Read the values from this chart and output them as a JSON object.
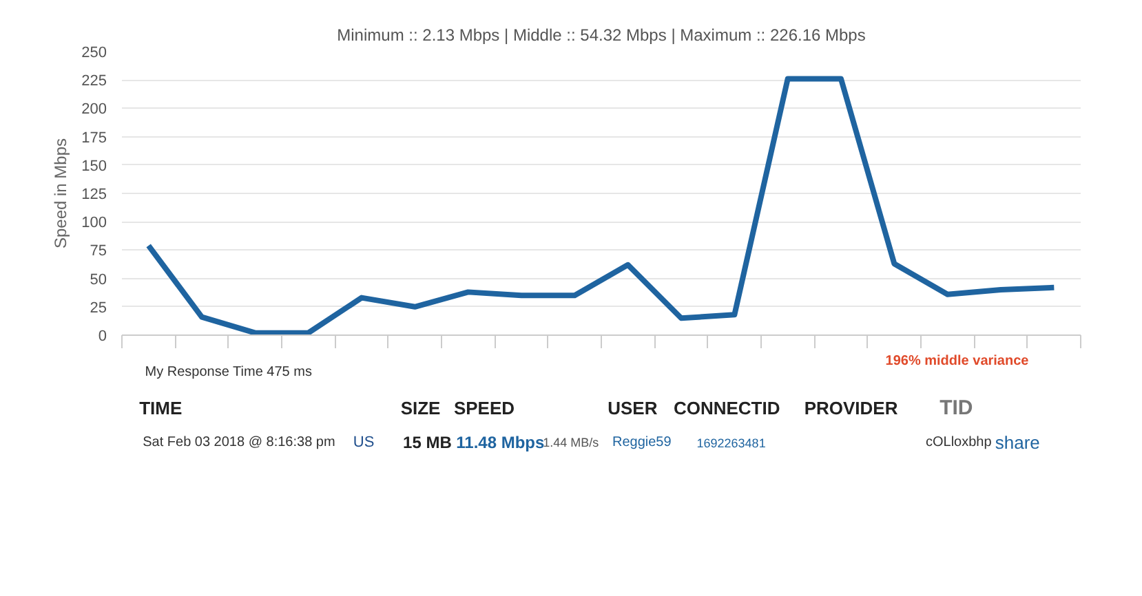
{
  "chart_data": {
    "type": "line",
    "title": "Minimum :: 2.13 Mbps | Middle :: 54.32 Mbps | Maximum :: 226.16 Mbps",
    "ylabel": "Speed in Mbps",
    "categories": [
      null,
      null,
      null,
      null,
      null,
      null,
      null,
      null,
      null,
      null,
      null,
      null,
      null,
      null,
      null,
      null,
      null,
      null
    ],
    "series": [
      {
        "color": "#1f64a0",
        "values": [
          79,
          16,
          2,
          2,
          33,
          25,
          38,
          35,
          35,
          62,
          15,
          18,
          226,
          226,
          63,
          36,
          40,
          42
        ]
      }
    ],
    "ylim": [
      0,
      250
    ],
    "yticks": [
      0,
      25,
      50,
      75,
      100,
      125,
      150,
      175,
      200,
      225,
      250
    ],
    "grid": "y",
    "marker": "none",
    "line_style": "solid",
    "annotations": [
      "My Response Time 475 ms",
      "196% middle variance",
      "TIME",
      "SIZE",
      "SPEED",
      "USER",
      "CONNECTID",
      "PROVIDER",
      "TID",
      "Sat Feb 03 2018 @ 8:16:38 pm",
      "US",
      "15 MB",
      "11.48 Mbps",
      "1.44 MB/s",
      "Reggie59",
      "1692263481",
      "cOLloxbhp",
      "share"
    ]
  }
}
